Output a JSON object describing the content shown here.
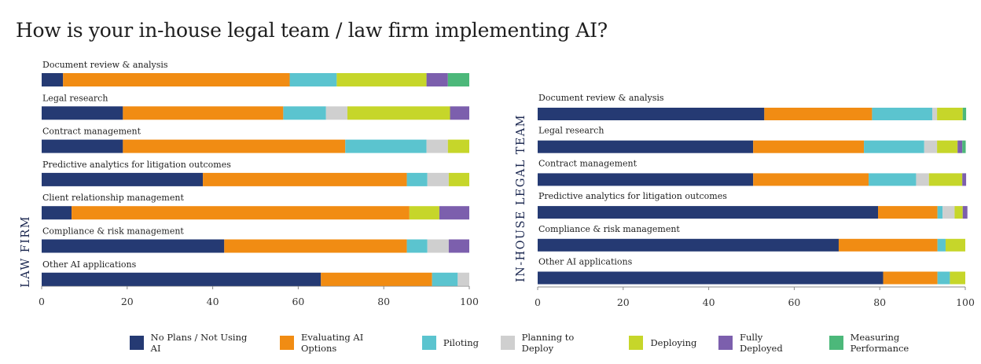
{
  "title": "How is your in-house legal team / law firm implementing AI?",
  "colors": {
    "No Plans / Not Using AI": "#253a73",
    "Evaluating AI Options": "#f18c13",
    "Piloting": "#5bc4cf",
    "Planning to Deploy": "#cfcfcf",
    "Deploying": "#c6d62a",
    "Fully Deployed": "#7c5fad",
    "Measuring Performance": "#4cb87a"
  },
  "legend": [
    "No Plans / Not Using AI",
    "Evaluating AI Options",
    "Piloting",
    "Planning to Deploy",
    "Deploying",
    "Fully Deployed",
    "Measuring Performance"
  ],
  "chart_data": [
    {
      "type": "bar",
      "orientation": "horizontal",
      "stacked": true,
      "panel_label": "LAW FIRM",
      "xlim": [
        0,
        100
      ],
      "xticks": [
        0,
        20,
        40,
        60,
        80,
        100
      ],
      "categories": [
        "Document review & analysis",
        "Legal research",
        "Contract management",
        "Predictive analytics for litigation outcomes",
        "Client relationship management",
        "Compliance & risk management",
        "Other AI applications"
      ],
      "series": [
        {
          "name": "No Plans / Not Using AI",
          "values": [
            5,
            19,
            19,
            37.7,
            7,
            42.7,
            65.3
          ]
        },
        {
          "name": "Evaluating AI Options",
          "values": [
            53,
            37.5,
            52,
            47.7,
            79,
            42.7,
            26
          ]
        },
        {
          "name": "Piloting",
          "values": [
            11,
            10,
            19,
            4.8,
            0,
            4.8,
            6
          ]
        },
        {
          "name": "Planning to Deploy",
          "values": [
            0,
            5,
            5,
            5,
            0,
            5,
            2.7
          ]
        },
        {
          "name": "Deploying",
          "values": [
            21,
            24,
            5,
            4.8,
            7,
            0,
            0
          ]
        },
        {
          "name": "Fully Deployed",
          "values": [
            5,
            4.5,
            0,
            0,
            7,
            4.8,
            0
          ]
        },
        {
          "name": "Measuring Performance",
          "values": [
            5,
            0,
            0,
            0,
            0,
            0,
            0
          ]
        }
      ]
    },
    {
      "type": "bar",
      "orientation": "horizontal",
      "stacked": true,
      "panel_label": "IN-HOUSE LEGAL TEAM",
      "xlim": [
        0,
        100
      ],
      "xticks": [
        0,
        20,
        40,
        60,
        80,
        100
      ],
      "categories": [
        "Document review & analysis",
        "Legal research",
        "Contract management",
        "Predictive analytics for litigation outcomes",
        "Compliance & risk management",
        "Other AI applications"
      ],
      "series": [
        {
          "name": "No Plans / Not Using AI",
          "values": [
            53,
            50.4,
            50.4,
            79.6,
            70.4,
            80.8
          ]
        },
        {
          "name": "Evaluating AI Options",
          "values": [
            25.2,
            25.9,
            27,
            13.9,
            23.1,
            12.7
          ]
        },
        {
          "name": "Piloting",
          "values": [
            14.1,
            14.1,
            11.1,
            1.2,
            1.9,
            2.9
          ]
        },
        {
          "name": "Planning to Deploy",
          "values": [
            1.1,
            3,
            3,
            2.8,
            0,
            0
          ]
        },
        {
          "name": "Deploying",
          "values": [
            6,
            4.8,
            7.8,
            1.9,
            4.6,
            3.6
          ]
        },
        {
          "name": "Fully Deployed",
          "values": [
            0,
            1.1,
            0.9,
            1.1,
            0,
            0
          ]
        },
        {
          "name": "Measuring Performance",
          "values": [
            0.8,
            0.8,
            0,
            0,
            0,
            0
          ]
        }
      ]
    }
  ]
}
